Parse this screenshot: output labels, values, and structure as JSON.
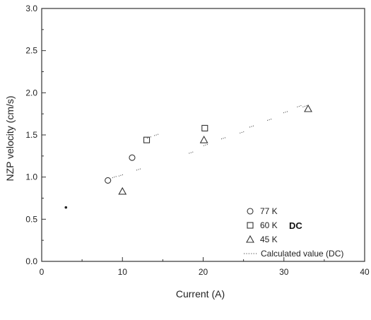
{
  "chart_data": {
    "type": "scatter",
    "xlabel": "Current (A)",
    "ylabel": "NZP velocity (cm/s)",
    "xlim": [
      0,
      40
    ],
    "ylim": [
      0.0,
      3.0
    ],
    "x_ticks": [
      "0",
      "10",
      "20",
      "30",
      "40"
    ],
    "y_ticks": [
      "0.0",
      "0.5",
      "1.0",
      "1.5",
      "2.0",
      "2.5",
      "3.0"
    ],
    "grid": false,
    "legend_position": "lower-right",
    "legend_group_label": "DC",
    "series": [
      {
        "name": "77 K",
        "marker": "circle",
        "x": [
          8.2,
          11.2
        ],
        "y": [
          0.96,
          1.23
        ]
      },
      {
        "name": "60 K",
        "marker": "square",
        "x": [
          13.0,
          20.2
        ],
        "y": [
          1.44,
          1.58
        ]
      },
      {
        "name": "45 K",
        "marker": "triangle",
        "x": [
          10.0,
          20.1,
          33.0
        ],
        "y": [
          0.83,
          1.44,
          1.81
        ]
      },
      {
        "name": "Calculated value (DC)",
        "marker": "dotted-line",
        "x": [
          9.0,
          9.8,
          12.0,
          13.3,
          14.2,
          18.5,
          20.3,
          22.5,
          24.8,
          26.0,
          28.2,
          30.2,
          31.9,
          32.6
        ],
        "y": [
          1.0,
          1.02,
          1.09,
          1.47,
          1.5,
          1.29,
          1.38,
          1.46,
          1.53,
          1.6,
          1.68,
          1.77,
          1.84,
          1.84
        ]
      }
    ],
    "extra_points": [
      {
        "x": 3.0,
        "y": 0.64,
        "marker": "dot"
      }
    ]
  }
}
